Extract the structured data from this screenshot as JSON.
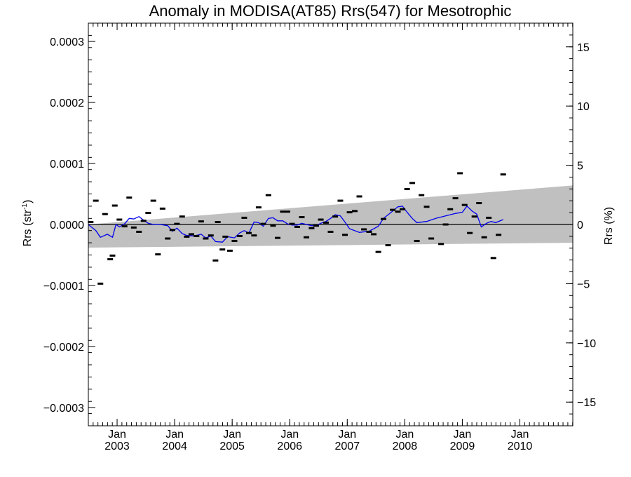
{
  "chart_data": {
    "type": "scatter",
    "title": "Anomaly in MODISA(AT85) Rrs(547) for Mesotrophic",
    "ylabel_left": "Rrs (str",
    "ylabel_left_sup": "-1",
    "ylabel_left_end": ")",
    "ylabel_right": "Rrs (%)",
    "xlim": [
      2002.5,
      2010.92
    ],
    "ylim": [
      -0.00033,
      0.00033
    ],
    "ylim_right": [
      -17,
      17
    ],
    "y_ticks_left": [
      {
        "value": 0.0003,
        "label": "0.0003"
      },
      {
        "value": 0.0002,
        "label": "0.0002"
      },
      {
        "value": 0.0001,
        "label": "0.0001"
      },
      {
        "value": 0.0,
        "label": "0.0000"
      },
      {
        "value": -0.0001,
        "label": "−0.0001"
      },
      {
        "value": -0.0002,
        "label": "−0.0002"
      },
      {
        "value": -0.0003,
        "label": "−0.0003"
      }
    ],
    "y_ticks_right": [
      {
        "value": 15,
        "label": "15"
      },
      {
        "value": 10,
        "label": "10"
      },
      {
        "value": 5,
        "label": "5"
      },
      {
        "value": 0,
        "label": "0"
      },
      {
        "value": -5,
        "label": "−5"
      },
      {
        "value": -10,
        "label": "−10"
      },
      {
        "value": -15,
        "label": "−15"
      }
    ],
    "x_ticks": [
      {
        "value": 2003.0,
        "month": "Jan",
        "year": "2003"
      },
      {
        "value": 2004.0,
        "month": "Jan",
        "year": "2004"
      },
      {
        "value": 2005.0,
        "month": "Jan",
        "year": "2005"
      },
      {
        "value": 2006.0,
        "month": "Jan",
        "year": "2006"
      },
      {
        "value": 2007.0,
        "month": "Jan",
        "year": "2007"
      },
      {
        "value": 2008.0,
        "month": "Jan",
        "year": "2008"
      },
      {
        "value": 2009.0,
        "month": "Jan",
        "year": "2009"
      },
      {
        "value": 2010.0,
        "month": "Jan",
        "year": "2010"
      }
    ],
    "band": {
      "x": [
        2002.5,
        2010.92
      ],
      "upper": [
        0.0,
        6.4e-05
      ],
      "lower": [
        -3.8e-05,
        -3e-05
      ]
    },
    "colors": {
      "band": "#c0c0c0",
      "running_mean": "#0000ee",
      "points": "#000000",
      "zero_line": "#000000"
    },
    "points": [
      [
        2002.54,
        4e-06
      ],
      [
        2002.63,
        3.9e-05
      ],
      [
        2002.71,
        -9.7e-05
      ],
      [
        2002.79,
        1.7e-05
      ],
      [
        2002.88,
        -5.7e-05
      ],
      [
        2002.92,
        -5.1e-05
      ],
      [
        2002.96,
        3.1e-05
      ],
      [
        2003.04,
        8e-06
      ],
      [
        2003.13,
        -3e-06
      ],
      [
        2003.21,
        4.4e-05
      ],
      [
        2003.29,
        -5e-06
      ],
      [
        2003.38,
        -1.2e-05
      ],
      [
        2003.46,
        6e-06
      ],
      [
        2003.54,
        1.9e-05
      ],
      [
        2003.63,
        3.9e-05
      ],
      [
        2003.71,
        -4.9e-05
      ],
      [
        2003.79,
        2.6e-05
      ],
      [
        2003.88,
        -2.3e-05
      ],
      [
        2003.96,
        -9e-06
      ],
      [
        2004.04,
        1e-06
      ],
      [
        2004.13,
        1.3e-05
      ],
      [
        2004.21,
        -2e-05
      ],
      [
        2004.29,
        -1.6e-05
      ],
      [
        2004.38,
        -1.9e-05
      ],
      [
        2004.46,
        5e-06
      ],
      [
        2004.54,
        -2.3e-05
      ],
      [
        2004.63,
        -1.8e-05
      ],
      [
        2004.71,
        -5.9e-05
      ],
      [
        2004.75,
        4e-06
      ],
      [
        2004.83,
        -4.1e-05
      ],
      [
        2004.88,
        -2e-05
      ],
      [
        2004.96,
        -4.3e-05
      ],
      [
        2005.04,
        -2.7e-05
      ],
      [
        2005.13,
        -1.9e-05
      ],
      [
        2005.21,
        1.1e-05
      ],
      [
        2005.29,
        -1.4e-05
      ],
      [
        2005.38,
        -1.8e-05
      ],
      [
        2005.46,
        2.8e-05
      ],
      [
        2005.54,
        1e-06
      ],
      [
        2005.63,
        4.8e-05
      ],
      [
        2005.71,
        -2e-06
      ],
      [
        2005.79,
        -2.2e-05
      ],
      [
        2005.88,
        2.1e-05
      ],
      [
        2005.96,
        2.1e-05
      ],
      [
        2006.04,
        1e-06
      ],
      [
        2006.13,
        -4e-06
      ],
      [
        2006.21,
        1.2e-05
      ],
      [
        2006.29,
        -2.1e-05
      ],
      [
        2006.38,
        -6e-06
      ],
      [
        2006.46,
        -2e-06
      ],
      [
        2006.54,
        8e-06
      ],
      [
        2006.63,
        3e-06
      ],
      [
        2006.71,
        -1.2e-05
      ],
      [
        2006.79,
        1.3e-05
      ],
      [
        2006.88,
        3.9e-05
      ],
      [
        2006.96,
        -1.7e-05
      ],
      [
        2007.04,
        2e-05
      ],
      [
        2007.13,
        2.2e-05
      ],
      [
        2007.21,
        4.6e-05
      ],
      [
        2007.29,
        -8e-06
      ],
      [
        2007.38,
        -1.2e-05
      ],
      [
        2007.46,
        -1.6e-05
      ],
      [
        2007.54,
        -4.5e-05
      ],
      [
        2007.63,
        9e-06
      ],
      [
        2007.71,
        -3.4e-05
      ],
      [
        2007.79,
        2.4e-05
      ],
      [
        2007.88,
        2.1e-05
      ],
      [
        2007.96,
        2.5e-05
      ],
      [
        2008.04,
        5.8e-05
      ],
      [
        2008.13,
        6.8e-05
      ],
      [
        2008.21,
        -2.7e-05
      ],
      [
        2008.29,
        4.8e-05
      ],
      [
        2008.38,
        2.9e-05
      ],
      [
        2008.46,
        -2.3e-05
      ],
      [
        2008.63,
        -3.2e-05
      ],
      [
        2008.71,
        0.0
      ],
      [
        2008.79,
        2.5e-05
      ],
      [
        2008.88,
        4.3e-05
      ],
      [
        2008.96,
        8.4e-05
      ],
      [
        2009.04,
        3.2e-05
      ],
      [
        2009.13,
        -1.4e-05
      ],
      [
        2009.21,
        1.3e-05
      ],
      [
        2009.29,
        3.5e-05
      ],
      [
        2009.38,
        -2.1e-05
      ],
      [
        2009.46,
        1.1e-05
      ],
      [
        2009.54,
        -5.5e-05
      ],
      [
        2009.63,
        -1.7e-05
      ],
      [
        2009.71,
        8.2e-05
      ]
    ],
    "running_mean": [
      [
        2002.5,
        0.0
      ],
      [
        2002.63,
        -1e-05
      ],
      [
        2002.71,
        -2.1e-05
      ],
      [
        2002.83,
        -1.6e-05
      ],
      [
        2002.92,
        -2.1e-05
      ],
      [
        2002.98,
        0.0
      ],
      [
        2003.04,
        -4e-06
      ],
      [
        2003.13,
        1e-06
      ],
      [
        2003.21,
        1e-05
      ],
      [
        2003.29,
        9e-06
      ],
      [
        2003.38,
        1.3e-05
      ],
      [
        2003.46,
        7e-06
      ],
      [
        2003.54,
        2e-06
      ],
      [
        2003.63,
        0.0
      ],
      [
        2003.75,
        0.0
      ],
      [
        2003.88,
        -2e-06
      ],
      [
        2003.96,
        -1.1e-05
      ],
      [
        2004.04,
        -6e-06
      ],
      [
        2004.13,
        -1.5e-05
      ],
      [
        2004.21,
        -1.8e-05
      ],
      [
        2004.33,
        -1.9e-05
      ],
      [
        2004.46,
        -1.6e-05
      ],
      [
        2004.54,
        -2.2e-05
      ],
      [
        2004.63,
        -1.9e-05
      ],
      [
        2004.71,
        -2.8e-05
      ],
      [
        2004.83,
        -2.9e-05
      ],
      [
        2004.92,
        -2e-05
      ],
      [
        2005.04,
        -2.2e-05
      ],
      [
        2005.13,
        -1.4e-05
      ],
      [
        2005.21,
        -1e-05
      ],
      [
        2005.29,
        -1.4e-05
      ],
      [
        2005.38,
        4e-06
      ],
      [
        2005.46,
        3e-06
      ],
      [
        2005.54,
        -3e-06
      ],
      [
        2005.63,
        1e-05
      ],
      [
        2005.71,
        1.1e-05
      ],
      [
        2005.79,
        6e-06
      ],
      [
        2005.88,
        6e-06
      ],
      [
        2005.96,
        1e-06
      ],
      [
        2006.04,
        -1e-06
      ],
      [
        2006.13,
        -1e-06
      ],
      [
        2006.21,
        2e-06
      ],
      [
        2006.29,
        0.0
      ],
      [
        2006.38,
        -2e-06
      ],
      [
        2006.46,
        -2e-06
      ],
      [
        2006.54,
        2e-06
      ],
      [
        2006.63,
        5e-06
      ],
      [
        2006.71,
        1e-05
      ],
      [
        2006.79,
        1.6e-05
      ],
      [
        2006.88,
        1.4e-05
      ],
      [
        2006.96,
        4e-06
      ],
      [
        2007.04,
        -7e-06
      ],
      [
        2007.21,
        -1.3e-05
      ],
      [
        2007.38,
        -1.1e-05
      ],
      [
        2007.54,
        -3e-06
      ],
      [
        2007.63,
        1e-05
      ],
      [
        2007.71,
        1.6e-05
      ],
      [
        2007.79,
        2.2e-05
      ],
      [
        2007.88,
        2.9e-05
      ],
      [
        2007.96,
        3e-05
      ],
      [
        2008.04,
        2e-05
      ],
      [
        2008.13,
        1e-05
      ],
      [
        2008.21,
        3e-06
      ],
      [
        2008.38,
        5e-06
      ],
      [
        2008.54,
        1e-05
      ],
      [
        2008.71,
        1.4e-05
      ],
      [
        2008.88,
        1.8e-05
      ],
      [
        2009.0,
        2e-05
      ],
      [
        2009.08,
        3e-05
      ],
      [
        2009.17,
        2.2e-05
      ],
      [
        2009.25,
        1.7e-05
      ],
      [
        2009.33,
        -4e-06
      ],
      [
        2009.42,
        2e-06
      ],
      [
        2009.5,
        5e-06
      ],
      [
        2009.58,
        3e-06
      ],
      [
        2009.71,
        8e-06
      ]
    ]
  }
}
